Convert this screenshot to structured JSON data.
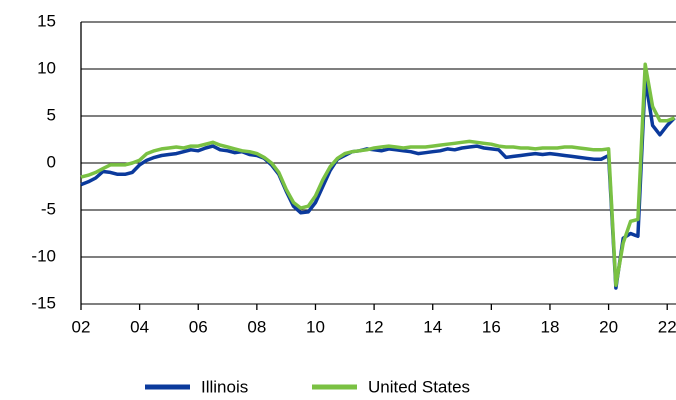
{
  "chart_data": {
    "type": "line",
    "x": [
      2002,
      2002.25,
      2002.5,
      2002.75,
      2003,
      2003.25,
      2003.5,
      2003.75,
      2004,
      2004.25,
      2004.5,
      2004.75,
      2005,
      2005.25,
      2005.5,
      2005.75,
      2006,
      2006.25,
      2006.5,
      2006.75,
      2007,
      2007.25,
      2007.5,
      2007.75,
      2008,
      2008.25,
      2008.5,
      2008.75,
      2009,
      2009.25,
      2009.5,
      2009.75,
      2010,
      2010.25,
      2010.5,
      2010.75,
      2011,
      2011.25,
      2011.5,
      2011.75,
      2012,
      2012.25,
      2012.5,
      2012.75,
      2013,
      2013.25,
      2013.5,
      2013.75,
      2014,
      2014.25,
      2014.5,
      2014.75,
      2015,
      2015.25,
      2015.5,
      2015.75,
      2016,
      2016.25,
      2016.5,
      2016.75,
      2017,
      2017.25,
      2017.5,
      2017.75,
      2018,
      2018.25,
      2018.5,
      2018.75,
      2019,
      2019.25,
      2019.5,
      2019.75,
      2020,
      2020.25,
      2020.5,
      2020.75,
      2021,
      2021.25,
      2021.5,
      2021.75,
      2022,
      2022.25
    ],
    "series": [
      {
        "name": "Illinois",
        "color": "#0b3a9c",
        "values": [
          -2.3,
          -2.0,
          -1.6,
          -0.9,
          -1.0,
          -1.2,
          -1.2,
          -1.0,
          -0.2,
          0.3,
          0.6,
          0.8,
          0.9,
          1.0,
          1.2,
          1.4,
          1.3,
          1.6,
          1.8,
          1.4,
          1.3,
          1.1,
          1.2,
          0.9,
          0.8,
          0.5,
          -0.2,
          -1.2,
          -3.0,
          -4.6,
          -5.3,
          -5.2,
          -4.2,
          -2.5,
          -0.8,
          0.4,
          0.8,
          1.2,
          1.3,
          1.5,
          1.4,
          1.3,
          1.5,
          1.4,
          1.3,
          1.2,
          1.0,
          1.1,
          1.2,
          1.3,
          1.5,
          1.4,
          1.6,
          1.7,
          1.8,
          1.6,
          1.5,
          1.4,
          0.6,
          0.7,
          0.8,
          0.9,
          1.0,
          0.9,
          1.0,
          0.9,
          0.8,
          0.7,
          0.6,
          0.5,
          0.4,
          0.4,
          0.8,
          -13.3,
          -8.0,
          -7.5,
          -7.8,
          9.0,
          4.0,
          3.0,
          4.0,
          4.8
        ]
      },
      {
        "name": "United States",
        "color": "#7ac143",
        "values": [
          -1.5,
          -1.3,
          -1.0,
          -0.6,
          -0.2,
          -0.2,
          -0.2,
          0.0,
          0.3,
          1.0,
          1.3,
          1.5,
          1.6,
          1.7,
          1.6,
          1.8,
          1.8,
          2.0,
          2.2,
          1.9,
          1.7,
          1.5,
          1.3,
          1.2,
          1.0,
          0.6,
          0.0,
          -1.0,
          -2.8,
          -4.2,
          -4.8,
          -4.6,
          -3.5,
          -1.8,
          -0.4,
          0.5,
          1.0,
          1.2,
          1.3,
          1.4,
          1.6,
          1.7,
          1.8,
          1.7,
          1.6,
          1.7,
          1.7,
          1.7,
          1.8,
          1.9,
          2.0,
          2.1,
          2.2,
          2.3,
          2.2,
          2.1,
          2.0,
          1.8,
          1.7,
          1.7,
          1.6,
          1.6,
          1.5,
          1.6,
          1.6,
          1.6,
          1.7,
          1.7,
          1.6,
          1.5,
          1.4,
          1.4,
          1.5,
          -13.0,
          -8.5,
          -6.2,
          -6.0,
          10.5,
          6.0,
          4.5,
          4.5,
          4.8
        ]
      }
    ],
    "xlim": [
      2002,
      2022.3
    ],
    "xticks": [
      {
        "value": 2002,
        "label": "02"
      },
      {
        "value": 2004,
        "label": "04"
      },
      {
        "value": 2006,
        "label": "06"
      },
      {
        "value": 2008,
        "label": "08"
      },
      {
        "value": 2010,
        "label": "10"
      },
      {
        "value": 2012,
        "label": "12"
      },
      {
        "value": 2014,
        "label": "14"
      },
      {
        "value": 2016,
        "label": "16"
      },
      {
        "value": 2018,
        "label": "18"
      },
      {
        "value": 2020,
        "label": "20"
      },
      {
        "value": 2022,
        "label": "22"
      }
    ],
    "ylim": [
      -15,
      15
    ],
    "yticks": [
      15,
      10,
      5,
      0,
      -5,
      -10,
      -15
    ],
    "grid": true
  }
}
